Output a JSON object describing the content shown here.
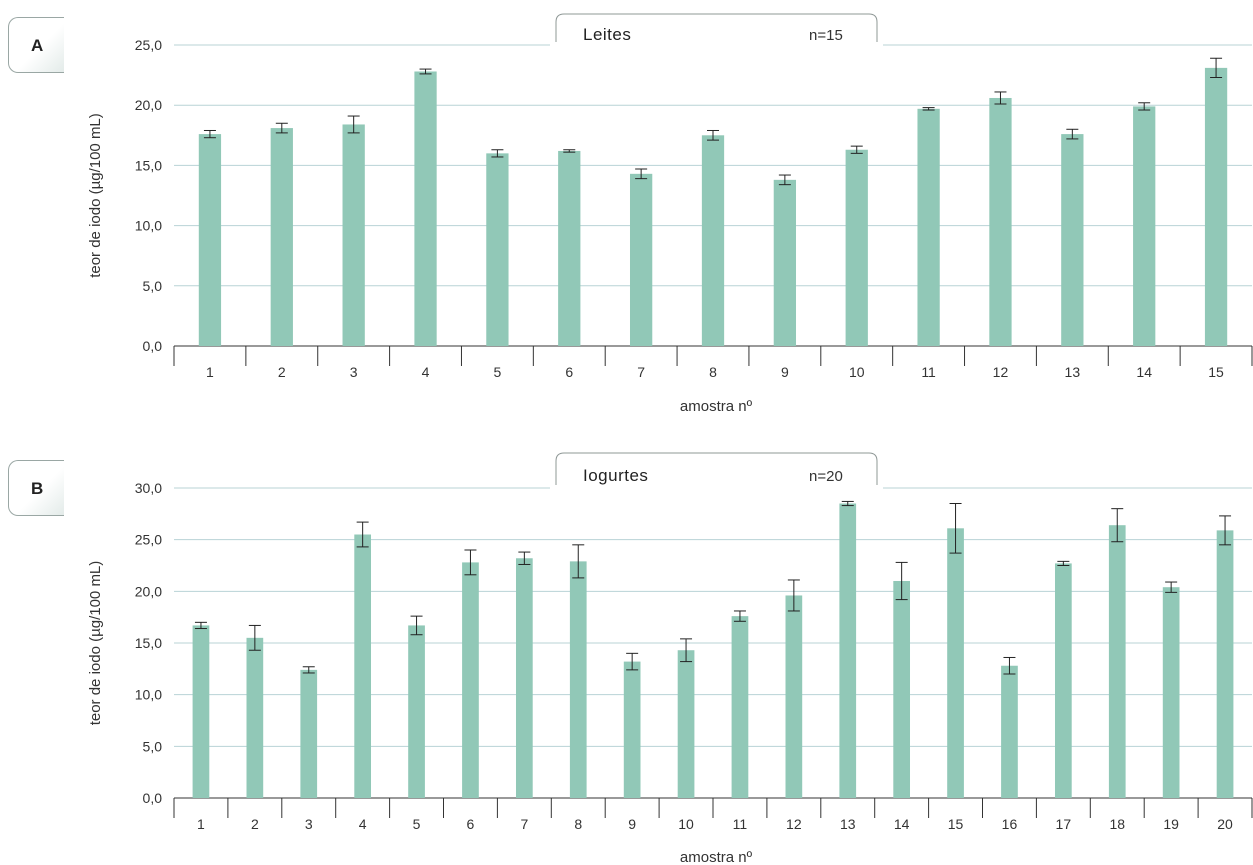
{
  "panels": {
    "a": {
      "tag": "A"
    },
    "b": {
      "tag": "B"
    }
  },
  "chart_data": [
    {
      "type": "bar",
      "title": "Leites",
      "n_label": "n=15",
      "xlabel": "amostra nº",
      "ylabel": "teor de iodo (µg/100 mL)",
      "ylim": [
        0,
        25
      ],
      "yticks": [
        "0,0",
        "5,0",
        "10,0",
        "15,0",
        "20,0",
        "25,0"
      ],
      "grid": true,
      "categories": [
        "1",
        "2",
        "3",
        "4",
        "5",
        "6",
        "7",
        "8",
        "9",
        "10",
        "11",
        "12",
        "13",
        "14",
        "15"
      ],
      "values": [
        17.6,
        18.1,
        18.4,
        22.8,
        16.0,
        16.2,
        14.3,
        17.5,
        13.8,
        16.3,
        19.7,
        20.6,
        17.6,
        19.9,
        23.1
      ],
      "errors": [
        0.3,
        0.4,
        0.7,
        0.2,
        0.3,
        0.1,
        0.4,
        0.4,
        0.4,
        0.3,
        0.1,
        0.5,
        0.4,
        0.3,
        0.8
      ],
      "color": "#91c8b7"
    },
    {
      "type": "bar",
      "title": "Iogurtes",
      "n_label": "n=20",
      "xlabel": "amostra nº",
      "ylabel": "teor de iodo (µg/100 mL)",
      "ylim": [
        0,
        30
      ],
      "yticks": [
        "0,0",
        "5,0",
        "10,0",
        "15,0",
        "20,0",
        "25,0",
        "30,0"
      ],
      "grid": true,
      "categories": [
        "1",
        "2",
        "3",
        "4",
        "5",
        "6",
        "7",
        "8",
        "9",
        "10",
        "11",
        "12",
        "13",
        "14",
        "15",
        "16",
        "17",
        "18",
        "19",
        "20"
      ],
      "values": [
        16.7,
        15.5,
        12.4,
        25.5,
        16.7,
        22.8,
        23.2,
        22.9,
        13.2,
        14.3,
        17.6,
        19.6,
        28.5,
        21.0,
        26.1,
        12.8,
        22.7,
        26.4,
        20.4,
        25.9
      ],
      "errors": [
        0.3,
        1.2,
        0.3,
        1.2,
        0.9,
        1.2,
        0.6,
        1.6,
        0.8,
        1.1,
        0.5,
        1.5,
        0.2,
        1.8,
        2.4,
        0.8,
        0.2,
        1.6,
        0.5,
        1.4
      ],
      "color": "#91c8b7"
    }
  ]
}
